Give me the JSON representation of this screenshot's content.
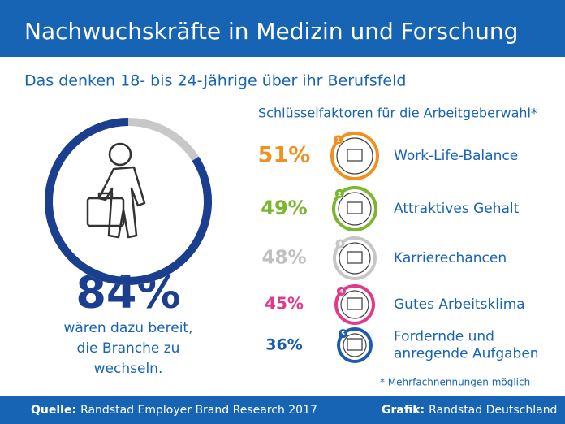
{
  "header": {
    "title": "Nachwuchskräfte in Medizin und Forschung",
    "subtitle": "Das denken 18- bis 24-Jährige über ihr Berufsfeld"
  },
  "summary": {
    "value": 84,
    "label": "84%",
    "text": [
      "wären dazu bereit,",
      "die Branche zu",
      "wechseln."
    ]
  },
  "factors": {
    "title": "Schlüsselfaktoren für die Arbeitgeberwahl*",
    "items": [
      {
        "rank": "1",
        "label": "51%",
        "name": [
          "Work-Life-Balance"
        ],
        "color": "#f0901e"
      },
      {
        "rank": "2",
        "label": "49%",
        "name": [
          "Attraktives Gehalt"
        ],
        "color": "#7ab62e"
      },
      {
        "rank": "3",
        "label": "48%",
        "name": [
          "Karrierechancen"
        ],
        "color": "#c6c6c6"
      },
      {
        "rank": "4",
        "label": "45%",
        "name": [
          "Gutes Arbeitsklima"
        ],
        "color": "#e03b8b"
      },
      {
        "rank": "5",
        "label": "36%",
        "name": [
          "Fordernde und",
          "anregende Aufgaben"
        ],
        "color": "#1c5cae"
      }
    ],
    "footnote": "* Mehrfachnennungen möglich"
  },
  "footer": {
    "source_label": "Quelle:",
    "source": "Randstad Employer Brand Research 2017",
    "credit_label": "Grafik:",
    "credit": "Randstad Deutschland"
  }
}
